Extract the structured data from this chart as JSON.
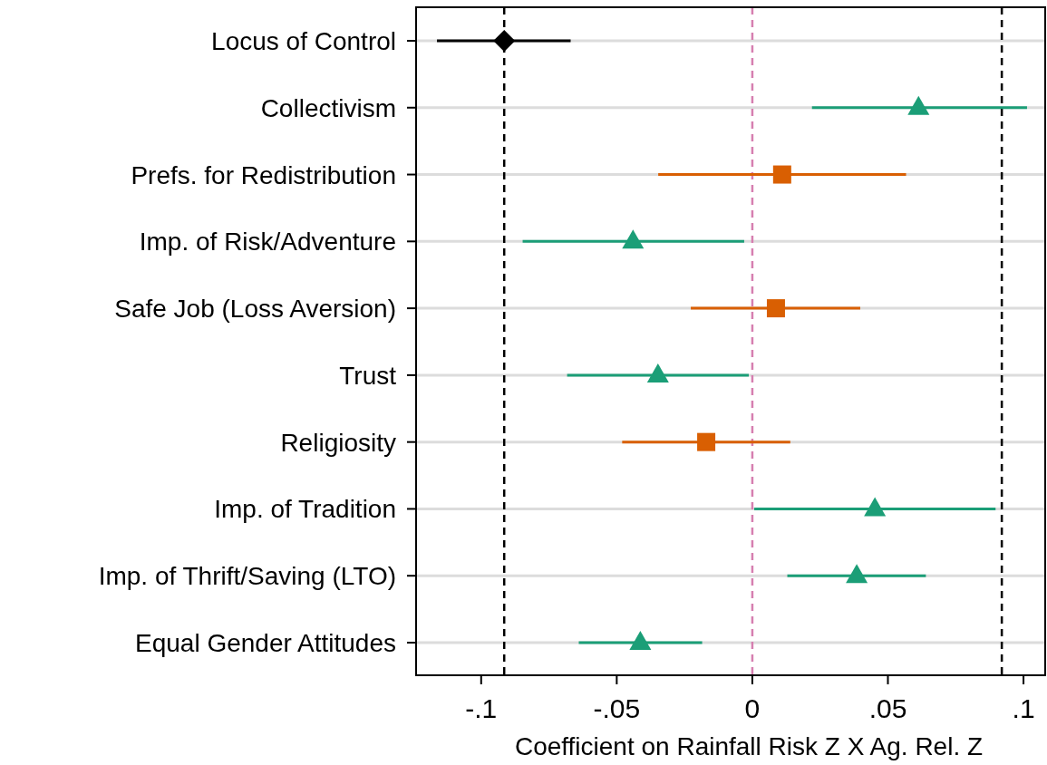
{
  "chart_data": {
    "type": "scatter",
    "orientation": "horizontal",
    "xlabel": "Coefficient on Rainfall Risk Z X Ag. Rel. Z",
    "categories": [
      "Locus of Control",
      "Collectivism",
      "Prefs. for Redistribution",
      "Imp. of Risk/Adventure",
      "Safe Job (Loss Aversion)",
      "Trust",
      "Religiosity",
      "Imp. of Tradition",
      "Imp. of Thrift/Saving (LTO)",
      "Equal Gender Attitudes"
    ],
    "series": [
      {
        "color": "#000000",
        "marker": "diamond",
        "values": [
          -0.0915,
          null,
          null,
          null,
          null,
          null,
          null,
          null,
          null,
          null
        ],
        "errors": [
          [
            -0.1163,
            -0.067
          ],
          null,
          null,
          null,
          null,
          null,
          null,
          null,
          null,
          null
        ]
      },
      {
        "color": "#1b9e77",
        "marker": "triangle",
        "values": [
          null,
          0.0613,
          null,
          -0.044,
          null,
          -0.0348,
          null,
          0.0452,
          0.0385,
          -0.0413
        ],
        "errors": [
          null,
          [
            0.022,
            0.1013
          ],
          null,
          [
            -0.0847,
            -0.003
          ],
          null,
          [
            -0.0683,
            -0.0013
          ],
          null,
          [
            0.0007,
            0.0897
          ],
          [
            0.0129,
            0.064
          ],
          [
            -0.064,
            -0.0185
          ]
        ]
      },
      {
        "color": "#d95f02",
        "marker": "square",
        "values": [
          null,
          null,
          0.011,
          null,
          0.0087,
          null,
          -0.017,
          null,
          null,
          null
        ],
        "errors": [
          null,
          null,
          [
            -0.0347,
            0.0567
          ],
          null,
          [
            -0.0227,
            0.0398
          ],
          null,
          [
            -0.048,
            0.014
          ],
          null,
          null,
          null
        ]
      }
    ],
    "xlim": [
      -0.124,
      0.108
    ],
    "xticks": [
      {
        "value": -0.1,
        "label": "-.1"
      },
      {
        "value": -0.05,
        "label": "-.05"
      },
      0,
      {
        "value": 0.05,
        "label": ".05"
      },
      {
        "value": 0.1,
        "label": ".1"
      }
    ],
    "ref_lines": [
      {
        "axis": "x",
        "value": -0.0915,
        "color": "#000000",
        "line_style": "dashed"
      },
      {
        "axis": "x",
        "value": 0,
        "color": "#d67fb0",
        "line_style": "dashed"
      },
      {
        "axis": "x",
        "value": 0.092,
        "color": "#000000",
        "line_style": "dashed"
      }
    ],
    "grid": "y"
  }
}
